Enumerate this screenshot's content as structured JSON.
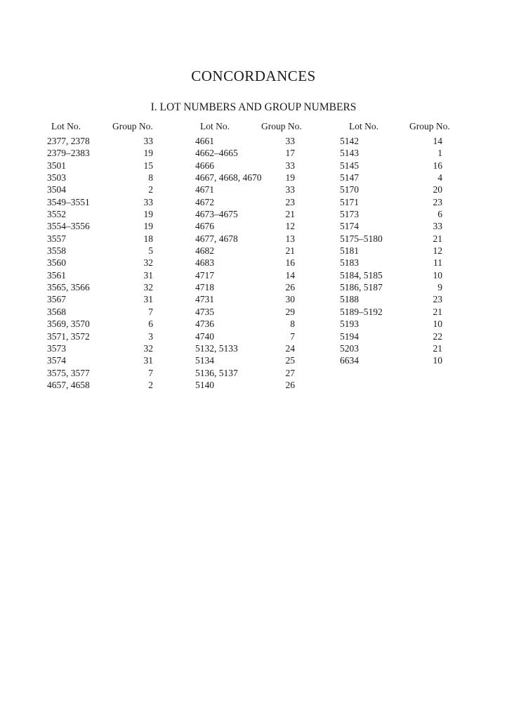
{
  "title": "CONCORDANCES",
  "subtitle": "I. LOT NUMBERS AND GROUP NUMBERS",
  "headers": {
    "lot": "Lot No.",
    "group": "Group No."
  },
  "columns": [
    [
      [
        "2377, 2378",
        "33"
      ],
      [
        "2379–2383",
        "19"
      ],
      [
        "3501",
        "15"
      ],
      [
        "3503",
        "8"
      ],
      [
        "3504",
        "2"
      ],
      [
        "3549–3551",
        "33"
      ],
      [
        "3552",
        "19"
      ],
      [
        "3554–3556",
        "19"
      ],
      [
        "3557",
        "18"
      ],
      [
        "3558",
        "5"
      ],
      [
        "3560",
        "32"
      ],
      [
        "3561",
        "31"
      ],
      [
        "3565, 3566",
        "32"
      ],
      [
        "3567",
        "31"
      ],
      [
        "3568",
        "7"
      ],
      [
        "3569, 3570",
        "6"
      ],
      [
        "3571, 3572",
        "3"
      ],
      [
        "3573",
        "32"
      ],
      [
        "3574",
        "31"
      ],
      [
        "3575, 3577",
        "7"
      ],
      [
        "4657, 4658",
        "2"
      ]
    ],
    [
      [
        "4661",
        "33"
      ],
      [
        "4662–4665",
        "17"
      ],
      [
        "4666",
        "33"
      ],
      [
        "4667, 4668, 4670",
        "19"
      ],
      [
        "4671",
        "33"
      ],
      [
        "4672",
        "23"
      ],
      [
        "4673–4675",
        "21"
      ],
      [
        "4676",
        "12"
      ],
      [
        "4677, 4678",
        "13"
      ],
      [
        "4682",
        "21"
      ],
      [
        "4683",
        "16"
      ],
      [
        "4717",
        "14"
      ],
      [
        "4718",
        "26"
      ],
      [
        "4731",
        "30"
      ],
      [
        "4735",
        "29"
      ],
      [
        "4736",
        "8"
      ],
      [
        "4740",
        "7"
      ],
      [
        "5132, 5133",
        "24"
      ],
      [
        "5134",
        "25"
      ],
      [
        "5136, 5137",
        "27"
      ],
      [
        "5140",
        "26"
      ]
    ],
    [
      [
        "5142",
        "14"
      ],
      [
        "5143",
        "1"
      ],
      [
        "5145",
        "16"
      ],
      [
        "5147",
        "4"
      ],
      [
        "5170",
        "20"
      ],
      [
        "5171",
        "23"
      ],
      [
        "5173",
        "6"
      ],
      [
        "5174",
        "33"
      ],
      [
        "5175–5180",
        "21"
      ],
      [
        "5181",
        "12"
      ],
      [
        "5183",
        "11"
      ],
      [
        "5184, 5185",
        "10"
      ],
      [
        "5186, 5187",
        "9"
      ],
      [
        "5188",
        "23"
      ],
      [
        "5189–5192",
        "21"
      ],
      [
        "5193",
        "10"
      ],
      [
        "5194",
        "22"
      ],
      [
        "5203",
        "21"
      ],
      [
        "6634",
        "10"
      ]
    ]
  ]
}
